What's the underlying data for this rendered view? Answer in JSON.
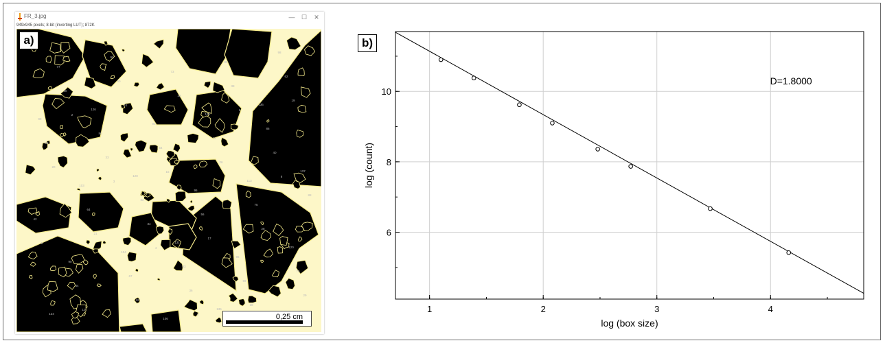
{
  "panel_a": {
    "label": "a)",
    "window_title": "FR_3.jpg",
    "info_line": "949x945 pixels; 8-bit (inverting LUT); 872K",
    "controls": {
      "minimize": "—",
      "maximize": "☐",
      "close": "✕"
    },
    "scale_bar_label": "0,25 cm",
    "particle_labels": [
      "1",
      "2",
      "3",
      "4",
      "5",
      "6",
      "8",
      "9",
      "10",
      "11",
      "15",
      "17",
      "18",
      "19",
      "20",
      "21",
      "22",
      "23",
      "26",
      "28",
      "29",
      "30",
      "33",
      "34",
      "36",
      "38",
      "40",
      "42",
      "44",
      "50",
      "54",
      "56",
      "59",
      "62",
      "63",
      "64",
      "67",
      "73",
      "74",
      "75",
      "76",
      "77",
      "80",
      "82",
      "83",
      "85",
      "86",
      "88",
      "90",
      "92",
      "93",
      "95",
      "96",
      "98",
      "99",
      "103",
      "104",
      "106",
      "109",
      "113",
      "120",
      "124",
      "126",
      "128",
      "131",
      "135",
      "136",
      "137"
    ],
    "colors": {
      "particle": "#000000",
      "background": "#ffffff",
      "edge": "#f7ec8c"
    }
  },
  "panel_b": {
    "label": "b)",
    "annotation": "D=1.8000"
  },
  "chart_data": {
    "type": "scatter",
    "xlabel": "log (box size)",
    "ylabel": "log (count)",
    "xlim": [
      0.7,
      4.82
    ],
    "ylim": [
      4.1,
      11.7
    ],
    "x_ticks": [
      1,
      2,
      3,
      4
    ],
    "y_ticks": [
      6,
      8,
      10
    ],
    "grid": true,
    "series": [
      {
        "x": [
          1.1,
          1.39,
          1.79,
          2.08,
          2.48,
          2.77,
          3.47,
          4.16
        ],
        "y": [
          10.9,
          10.38,
          9.62,
          9.1,
          8.36,
          7.87,
          6.67,
          5.42
        ]
      }
    ],
    "fit_line": {
      "slope": -1.8,
      "intercept": 12.94
    },
    "annotation": "D=1.8000"
  }
}
